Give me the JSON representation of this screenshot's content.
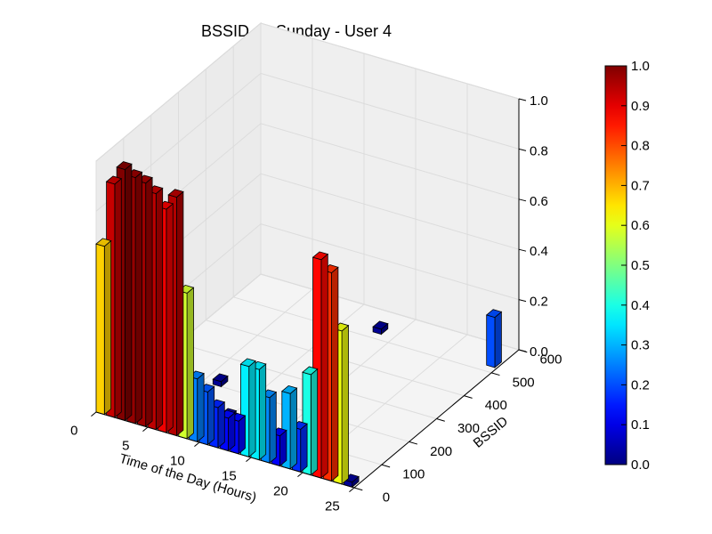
{
  "chart_data": {
    "type": "bar3d",
    "title": "BSSID on Sunday - User 4",
    "xlabel": "Time of the Day (Hours)",
    "ylabel": "BSSID",
    "zlabel": "",
    "xlim": [
      0,
      25
    ],
    "ylim": [
      0,
      600
    ],
    "zlim": [
      0,
      1
    ],
    "x_ticks": [
      "0",
      "5",
      "10",
      "15",
      "20",
      "25"
    ],
    "y_ticks": [
      "0",
      "100",
      "200",
      "300",
      "400",
      "500",
      "600"
    ],
    "z_ticks": [
      "0.0",
      "0.2",
      "0.4",
      "0.6",
      "0.8",
      "1.0"
    ],
    "colorbar": {
      "colormap": "jet",
      "range": [
        0,
        1
      ],
      "ticks": [
        "0.0",
        "0.1",
        "0.2",
        "0.3",
        "0.4",
        "0.5",
        "0.6",
        "0.7",
        "0.8",
        "0.9",
        "1.0"
      ]
    },
    "bars": [
      {
        "x": 0,
        "y": 0,
        "z": 0.67
      },
      {
        "x": 1,
        "y": 0,
        "z": 0.93
      },
      {
        "x": 2,
        "y": 0,
        "z": 1.0
      },
      {
        "x": 3,
        "y": 0,
        "z": 0.98
      },
      {
        "x": 4,
        "y": 0,
        "z": 0.97
      },
      {
        "x": 5,
        "y": 0,
        "z": 0.94
      },
      {
        "x": 6,
        "y": 0,
        "z": 0.89
      },
      {
        "x": 7,
        "y": 0,
        "z": 0.95
      },
      {
        "x": 8,
        "y": 0,
        "z": 0.58
      },
      {
        "x": 9,
        "y": 0,
        "z": 0.25
      },
      {
        "x": 10,
        "y": 0,
        "z": 0.21
      },
      {
        "x": 11,
        "y": 0,
        "z": 0.16
      },
      {
        "x": 12,
        "y": 0,
        "z": 0.13
      },
      {
        "x": 13,
        "y": 0,
        "z": 0.13
      },
      {
        "x": 14,
        "y": 0,
        "z": 0.36
      },
      {
        "x": 15,
        "y": 0,
        "z": 0.36
      },
      {
        "x": 16,
        "y": 0,
        "z": 0.26
      },
      {
        "x": 17,
        "y": 0,
        "z": 0.12
      },
      {
        "x": 18,
        "y": 0,
        "z": 0.3
      },
      {
        "x": 19,
        "y": 0,
        "z": 0.17
      },
      {
        "x": 20,
        "y": 0,
        "z": 0.4
      },
      {
        "x": 21,
        "y": 0,
        "z": 0.87
      },
      {
        "x": 22,
        "y": 0,
        "z": 0.83
      },
      {
        "x": 23,
        "y": 0,
        "z": 0.61
      },
      {
        "x": 24,
        "y": 0,
        "z": 0.02
      },
      {
        "x": 9,
        "y": 60,
        "z": 0.02
      },
      {
        "x": 10,
        "y": 80,
        "z": 0.04
      },
      {
        "x": 6,
        "y": 200,
        "z": 0.02
      },
      {
        "x": 15,
        "y": 190,
        "z": 0.03
      },
      {
        "x": 15,
        "y": 250,
        "z": 0.03
      },
      {
        "x": 13,
        "y": 520,
        "z": 0.02
      },
      {
        "x": 24,
        "y": 520,
        "z": 0.2
      }
    ]
  }
}
